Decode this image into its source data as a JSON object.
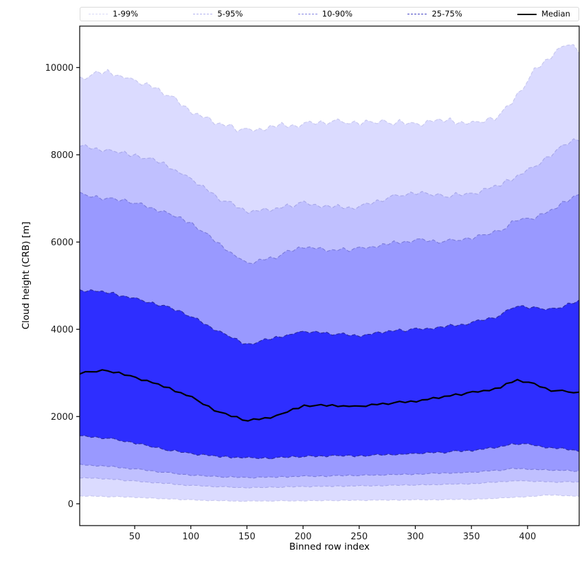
{
  "chart_data": {
    "type": "area",
    "subtype": "quantile-fan-chart",
    "title": "",
    "xlabel": "Binned row index",
    "ylabel": "Cloud height (CRB) [m]",
    "xlim": [
      1,
      446
    ],
    "ylim": [
      -500,
      10950
    ],
    "xticks": [
      50,
      100,
      150,
      200,
      250,
      300,
      350,
      400
    ],
    "yticks": [
      0,
      2000,
      4000,
      6000,
      8000,
      10000
    ],
    "grid": false,
    "legend_position": "top",
    "band_fill": "#0000ff",
    "anchor_x": [
      1,
      25,
      50,
      75,
      100,
      125,
      150,
      175,
      200,
      225,
      250,
      275,
      300,
      325,
      350,
      375,
      390,
      405,
      420,
      435,
      446
    ],
    "sampling": {
      "start": 1,
      "step": 5,
      "count": 90
    },
    "noise": [
      0.2,
      -0.5,
      0.7,
      -0.1,
      0.55,
      -0.75,
      0.15,
      0.85,
      -0.35,
      0.45,
      -0.65,
      0.25,
      -0.2,
      0.7,
      -0.55,
      0.4,
      -0.1,
      0.8,
      -0.85,
      0.3,
      0.6,
      -0.4,
      0.15,
      -0.7,
      0.5,
      -0.25,
      0.9,
      -0.5,
      0.1,
      -0.75,
      0.35,
      0.65,
      -0.3,
      0.55,
      -0.6,
      0.2,
      0.8,
      -0.15,
      -0.45,
      0.3,
      -0.85,
      0.5,
      0.05,
      -0.4,
      0.7,
      -0.2,
      -0.6,
      0.9,
      -0.3,
      0.4,
      0.2,
      -0.75,
      0.6,
      -0.05,
      0.5,
      -0.5,
      0.8,
      -0.65,
      0.3,
      -0.2,
      0.7,
      0.1,
      -0.55,
      0.45,
      -0.85,
      0.25,
      0.6,
      -0.35,
      0.9,
      -0.45,
      -0.1,
      0.75,
      -0.4,
      0.3,
      -0.7,
      0.5,
      0.15,
      -0.25,
      0.65,
      -0.8,
      0.4,
      -0.6,
      0.1,
      0.85,
      -0.3,
      0.7,
      -0.5,
      0.2,
      -0.15,
      0.35
    ],
    "quantiles": {
      "p1": {
        "values": [
          180,
          165,
          150,
          115,
          90,
          70,
          60,
          65,
          70,
          75,
          80,
          85,
          90,
          95,
          100,
          130,
          150,
          175,
          200,
          185,
          170
        ],
        "noise_amp": 12,
        "noise_offset": 0
      },
      "p5": {
        "values": [
          600,
          570,
          520,
          470,
          420,
          390,
          370,
          380,
          395,
          400,
          410,
          420,
          430,
          445,
          460,
          500,
          530,
          515,
          500,
          500,
          500
        ],
        "noise_amp": 15,
        "noise_offset": 10
      },
      "p10": {
        "values": [
          900,
          860,
          800,
          720,
          660,
          620,
          600,
          610,
          630,
          640,
          650,
          665,
          680,
          700,
          720,
          770,
          810,
          790,
          770,
          760,
          750
        ],
        "noise_amp": 20,
        "noise_offset": 20
      },
      "p25": {
        "values": [
          1550,
          1500,
          1400,
          1250,
          1150,
          1080,
          1050,
          1050,
          1080,
          1100,
          1100,
          1120,
          1150,
          1180,
          1220,
          1300,
          1380,
          1350,
          1280,
          1250,
          1220
        ],
        "noise_amp": 30,
        "noise_offset": 30
      },
      "median": {
        "values": [
          3000,
          3060,
          2900,
          2700,
          2450,
          2100,
          1900,
          2000,
          2250,
          2250,
          2230,
          2300,
          2350,
          2450,
          2550,
          2650,
          2850,
          2750,
          2600,
          2570,
          2550
        ],
        "noise_amp": 30,
        "noise_offset": 40
      },
      "p75": {
        "values": [
          4900,
          4850,
          4700,
          4550,
          4300,
          3950,
          3650,
          3800,
          3950,
          3900,
          3850,
          3950,
          4000,
          4050,
          4150,
          4300,
          4550,
          4500,
          4450,
          4550,
          4650
        ],
        "noise_amp": 45,
        "noise_offset": 50
      },
      "p90": {
        "values": [
          7100,
          7000,
          6900,
          6700,
          6450,
          5950,
          5500,
          5650,
          5900,
          5800,
          5850,
          5950,
          6050,
          6000,
          6100,
          6250,
          6500,
          6550,
          6700,
          6950,
          7100
        ],
        "noise_amp": 60,
        "noise_offset": 60
      },
      "p95": {
        "values": [
          8200,
          8100,
          8000,
          7800,
          7450,
          7000,
          6700,
          6750,
          6900,
          6800,
          6800,
          7000,
          7150,
          7050,
          7100,
          7300,
          7500,
          7700,
          8000,
          8250,
          8350
        ],
        "noise_amp": 70,
        "noise_offset": 70
      },
      "p99": {
        "values": [
          9750,
          9900,
          9700,
          9450,
          9000,
          8700,
          8550,
          8650,
          8700,
          8750,
          8750,
          8750,
          8700,
          8800,
          8700,
          8900,
          9300,
          9900,
          10250,
          10550,
          10400
        ],
        "noise_amp": 90,
        "noise_offset": 80
      }
    },
    "bands": [
      {
        "label": "1-99%",
        "lower": "p1",
        "upper": "p99",
        "fill_alpha": 0.14,
        "edge_color": "#c6c6ee"
      },
      {
        "label": "5-95%",
        "lower": "p5",
        "upper": "p95",
        "fill_alpha": 0.12,
        "edge_color": "#a6a6e8"
      },
      {
        "label": "10-90%",
        "lower": "p10",
        "upper": "p90",
        "fill_alpha": 0.2,
        "edge_color": "#7a7ad8"
      },
      {
        "label": "25-75%",
        "lower": "p25",
        "upper": "p75",
        "fill_alpha": 0.7,
        "edge_color": "#2a2a9a"
      }
    ],
    "median_line": {
      "color": "#000000",
      "width": 2.2
    },
    "legend": [
      {
        "label": "1-99%",
        "color": "#d8d8f6",
        "style": "dashed"
      },
      {
        "label": "5-95%",
        "color": "#b2b2ef",
        "style": "dashed"
      },
      {
        "label": "10-90%",
        "color": "#8585e3",
        "style": "dashed"
      },
      {
        "label": "25-75%",
        "color": "#4747c4",
        "style": "dashed"
      },
      {
        "label": "Median",
        "color": "#000000",
        "style": "solid"
      }
    ]
  }
}
